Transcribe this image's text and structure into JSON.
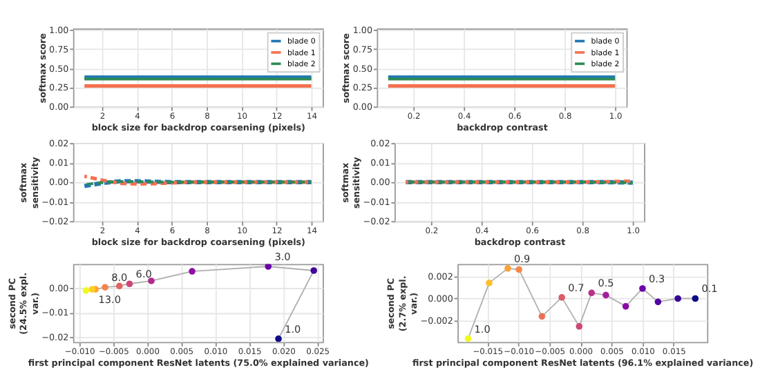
{
  "chart_data": [
    {
      "type": "line",
      "xlabel": "block size for backdrop coarsening (pixels)",
      "ylabel": "softmax score",
      "x": [
        1,
        14
      ],
      "series": [
        {
          "name": "blade 0",
          "color": "#1f77b4",
          "values": [
            0.38,
            0.38
          ]
        },
        {
          "name": "blade 1",
          "color": "#f4704f",
          "values": [
            0.27,
            0.27
          ]
        },
        {
          "name": "blade 2",
          "color": "#2e8b57",
          "values": [
            0.36,
            0.36
          ]
        }
      ],
      "xlim": [
        0.35,
        14.65
      ],
      "xticks": [
        2,
        4,
        6,
        8,
        10,
        12,
        14
      ],
      "ylim": [
        0,
        1.02
      ],
      "yticks": [
        {
          "value": 0,
          "label": "0.00"
        },
        0.25,
        {
          "value": 0.5,
          "label": "0.50"
        },
        0.75,
        {
          "value": 1,
          "label": "1.00"
        }
      ],
      "grid": true,
      "legend": "top right",
      "line_style": "solid",
      "marker": "none"
    },
    {
      "type": "line",
      "xlabel": "backdrop contrast",
      "ylabel": "softmax score",
      "x": [
        0.1,
        1.0
      ],
      "series": [
        {
          "name": "blade 0",
          "color": "#1f77b4",
          "values": [
            0.38,
            0.38
          ]
        },
        {
          "name": "blade 1",
          "color": "#f4704f",
          "values": [
            0.27,
            0.27
          ]
        },
        {
          "name": "blade 2",
          "color": "#2e8b57",
          "values": [
            0.36,
            0.36
          ]
        }
      ],
      "xlim": [
        0.055,
        1.045
      ],
      "xticks": [
        0.2,
        0.4,
        0.6,
        0.8,
        {
          "value": 1,
          "label": "1.0"
        }
      ],
      "ylim": [
        0,
        1.02
      ],
      "yticks": [
        {
          "value": 0,
          "label": "0.00"
        },
        0.25,
        {
          "value": 0.5,
          "label": "0.50"
        },
        0.75,
        {
          "value": 1,
          "label": "1.00"
        }
      ],
      "grid": true,
      "legend": "top right",
      "line_style": "solid",
      "marker": "none"
    },
    {
      "type": "line",
      "xlabel": "block size for backdrop coarsening (pixels)",
      "ylabel": "softmax sensitivity",
      "x": [
        1,
        2,
        3,
        4,
        5,
        6,
        7,
        8,
        9,
        10,
        11,
        12,
        13,
        14
      ],
      "series": [
        {
          "color": "#1f77b4",
          "values": [
            -0.002,
            -0.0005,
            0.0004,
            0.0004,
            0.0002,
            0,
            0,
            0,
            0,
            0,
            0,
            0,
            0,
            0
          ]
        },
        {
          "color": "#f4704f",
          "values": [
            0.003,
            0.001,
            -0.0006,
            -0.0009,
            -0.0008,
            -0.0004,
            0,
            0,
            0,
            0,
            0,
            0,
            0,
            0
          ]
        },
        {
          "color": "#2e8b57",
          "values": [
            -0.0012,
            -0.0003,
            0.0003,
            0.0003,
            0.0001,
            0,
            0,
            0,
            0,
            0,
            0,
            0,
            0,
            0
          ]
        }
      ],
      "xlim": [
        0.35,
        14.65
      ],
      "xticks": [
        2,
        4,
        6,
        8,
        10,
        12,
        14
      ],
      "ylim": [
        -0.02,
        0.02
      ],
      "yticks": [
        {
          "value": -0.02,
          "label": "−0.02"
        },
        {
          "value": -0.01,
          "label": "−0.01"
        },
        {
          "value": 0,
          "label": "0.00"
        },
        0.01,
        0.02
      ],
      "grid": true,
      "line_style": "dashed",
      "marker": "none"
    },
    {
      "type": "line",
      "xlabel": "backdrop contrast",
      "ylabel": "softmax sensitivity",
      "x": [
        0.1,
        0.2,
        0.3,
        0.4,
        0.5,
        0.6,
        0.7,
        0.8,
        0.9,
        1.0
      ],
      "series": [
        {
          "color": "#1f77b4",
          "values": [
            0,
            0,
            0,
            0,
            0,
            0,
            0,
            0,
            0,
            -0.0003
          ]
        },
        {
          "color": "#f4704f",
          "values": [
            0,
            0,
            0,
            0,
            0,
            0,
            0,
            0,
            0.0002,
            0.0005
          ]
        },
        {
          "color": "#2e8b57",
          "values": [
            0,
            0,
            0,
            0,
            0,
            0,
            0,
            0,
            -0.0002,
            -0.0004
          ]
        }
      ],
      "xlim": [
        0.055,
        1.045
      ],
      "xticks": [
        0.2,
        0.4,
        0.6,
        0.8,
        {
          "value": 1,
          "label": "1.0"
        }
      ],
      "ylim": [
        -0.02,
        0.02
      ],
      "yticks": [
        {
          "value": -0.02,
          "label": "−0.02"
        },
        {
          "value": -0.01,
          "label": "−0.01"
        },
        {
          "value": 0,
          "label": "0.00"
        },
        0.01,
        0.02
      ],
      "grid": true,
      "line_style": "dashed",
      "marker": "none"
    },
    {
      "type": "line",
      "xlabel": "first principal component ResNet latents (75.0% explained variance)",
      "ylabel": "second PC (24.5% expl. var.)",
      "series": [
        {
          "color": "#b0b0b0",
          "x": [
            0.0193,
            0.0245,
            0.0178,
            0.0066,
            0.0006,
            -0.0026,
            -0.0041,
            -0.0062,
            -0.0076,
            -0.0081,
            -0.009
          ],
          "values": [
            -0.0207,
            0.0071,
            0.0088,
            0.0068,
            0.0029,
            0.0017,
            0.0008,
            0.0003,
            -0.0005,
            -0.0005,
            -0.001
          ],
          "colors": [
            "#0d0887",
            "#41049d",
            "#6a00a8",
            "#8f0da4",
            "#b12a90",
            "#cc4778",
            "#e16462",
            "#f2844b",
            "#fca636",
            "#fcce25",
            "#f0f921"
          ]
        }
      ],
      "annotations": [
        {
          "text": "1.0",
          "x": 0.0193,
          "y": -0.0207
        },
        {
          "text": "3.0",
          "x": 0.0178,
          "y": 0.0088
        },
        {
          "text": "6.0",
          "x": -0.0026,
          "y": 0.0017
        },
        {
          "text": "8.0",
          "x": -0.0062,
          "y": 0.0003
        },
        {
          "text": "13.0",
          "x": -0.0081,
          "y": -0.0005
        }
      ],
      "xlim": [
        -0.0109,
        0.0258
      ],
      "xticks": [
        {
          "value": -0.01,
          "label": "−0.010"
        },
        {
          "value": -0.005,
          "label": "−0.005"
        },
        {
          "value": 0,
          "label": "0.000"
        },
        0.005,
        {
          "value": 0.01,
          "label": "0.010"
        },
        0.015,
        {
          "value": 0.02,
          "label": "0.020"
        },
        0.025
      ],
      "ylim": [
        -0.022,
        0.0098
      ],
      "yticks": [
        {
          "value": -0.02,
          "label": "−0.02"
        },
        {
          "value": -0.01,
          "label": "−0.01"
        },
        {
          "value": 0,
          "label": "0.00"
        }
      ],
      "grid": true,
      "line_style": "solid",
      "marker": "circle"
    },
    {
      "type": "line",
      "xlabel": "first principal component ResNet latents (96.1% explained variance)",
      "ylabel": "second PC (2.7% expl. var.)",
      "series": [
        {
          "color": "#b0b0b0",
          "x": [
            -0.0181,
            -0.0147,
            -0.0117,
            -0.0099,
            -0.0062,
            -0.003,
            -0.0002,
            0.0018,
            0.0041,
            0.0073,
            0.01,
            0.0125,
            0.0157,
            0.0185
          ],
          "values": [
            -0.0036,
            0.0014,
            0.0027,
            0.0026,
            -0.0016,
            0.0001,
            -0.0025,
            0.0005,
            0.0003,
            -0.0007,
            0.0009,
            -0.0003,
            0.0,
            0.0
          ],
          "colors": [
            "#f0f921",
            "#febd2a",
            "#fba238",
            "#f48849",
            "#e97158",
            "#db5c68",
            "#cc4778",
            "#b83289",
            "#a31e9a",
            "#8b0aa5",
            "#6f00a8",
            "#5302a3",
            "#350498",
            "#0d0887"
          ]
        }
      ],
      "annotations": [
        {
          "text": "1.0",
          "x": -0.0181,
          "y": -0.0036
        },
        {
          "text": "0.9",
          "x": -0.0117,
          "y": 0.0027
        },
        {
          "text": "0.7",
          "x": -0.003,
          "y": 0.0001
        },
        {
          "text": "0.5",
          "x": 0.0018,
          "y": 0.0005
        },
        {
          "text": "0.3",
          "x": 0.01,
          "y": 0.0009
        },
        {
          "text": "0.1",
          "x": 0.0185,
          "y": 0.0
        }
      ],
      "xlim": [
        -0.0198,
        0.0204
      ],
      "xticks": [
        {
          "value": -0.015,
          "label": "−0.015"
        },
        {
          "value": -0.01,
          "label": "−0.010"
        },
        {
          "value": -0.005,
          "label": "−0.005"
        },
        {
          "value": 0,
          "label": "0.000"
        },
        0.005,
        {
          "value": 0.01,
          "label": "0.010"
        },
        0.015
      ],
      "ylim": [
        -0.0039,
        0.0031
      ],
      "yticks": [
        {
          "value": -0.002,
          "label": "−0.002"
        },
        {
          "value": 0,
          "label": "0.000"
        },
        0.002
      ],
      "grid": true,
      "line_style": "solid",
      "marker": "circle"
    }
  ]
}
